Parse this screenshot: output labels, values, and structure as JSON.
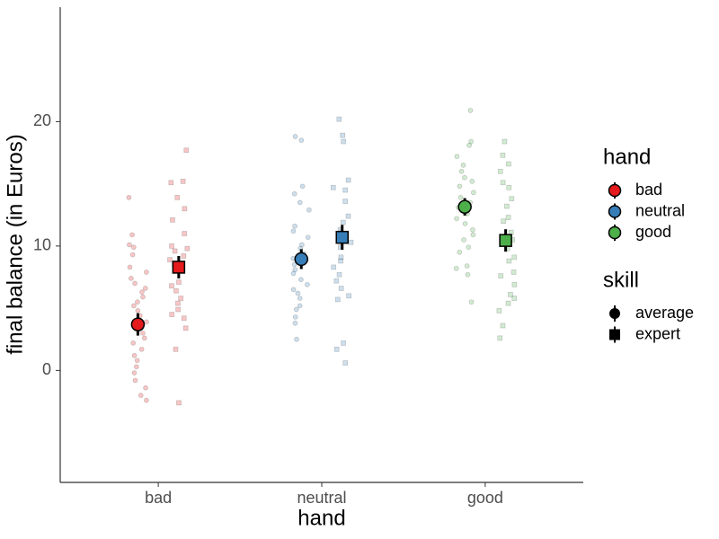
{
  "chart_data": {
    "type": "scatter",
    "x_label": "hand",
    "y_label": "final balance (in Euros)",
    "categories": [
      "bad",
      "neutral",
      "good"
    ],
    "ylim": [
      -9,
      29.2
    ],
    "yticks": [
      0,
      10,
      20
    ],
    "legend_title": "hand",
    "skill": {
      "title": "skill",
      "names": [
        "average",
        "expert"
      ]
    },
    "series": [
      {
        "name": "bad",
        "color": "#e41a1c",
        "average": {
          "mean": 3.7,
          "error": 0.9,
          "points": [
            13.9,
            10.9,
            10.1,
            9.9,
            9.3,
            8.3,
            7.9,
            7.4,
            7.0,
            6.6,
            6.3,
            5.9,
            5.5,
            5.2,
            4.8,
            4.4,
            3.9,
            3.4,
            3.0,
            2.6,
            2.2,
            1.7,
            1.2,
            0.8,
            0.3,
            -0.2,
            -0.8,
            -1.4,
            -2.0,
            -2.4
          ]
        },
        "expert": {
          "mean": 8.3,
          "error": 0.9,
          "points": [
            17.7,
            15.2,
            15.1,
            13.9,
            13.0,
            12.1,
            11.0,
            10.0,
            9.8,
            9.6,
            9.2,
            8.9,
            8.5,
            8.0,
            7.1,
            6.8,
            6.4,
            5.8,
            5.4,
            4.9,
            4.5,
            4.2,
            3.4,
            1.7,
            -2.6
          ]
        }
      },
      {
        "name": "neutral",
        "color": "#377eb8",
        "average": {
          "mean": 8.95,
          "error": 0.8,
          "points": [
            18.8,
            18.5,
            14.8,
            14.2,
            13.5,
            12.9,
            11.6,
            11.2,
            10.7,
            10.1,
            9.8,
            9.4,
            9.0,
            8.5,
            8.1,
            7.8,
            7.3,
            6.9,
            6.5,
            6.2,
            5.8,
            5.2,
            4.9,
            4.3,
            3.8,
            2.5
          ]
        },
        "expert": {
          "mean": 10.7,
          "error": 1.0,
          "points": [
            20.2,
            18.9,
            18.4,
            15.3,
            14.7,
            14.5,
            13.6,
            12.4,
            11.9,
            11.3,
            10.8,
            10.3,
            9.9,
            9.1,
            8.8,
            8.3,
            7.7,
            7.2,
            6.6,
            6.0,
            5.7,
            2.2,
            1.7,
            0.6
          ]
        }
      },
      {
        "name": "good",
        "color": "#4daf4a",
        "average": {
          "mean": 13.15,
          "error": 0.7,
          "points": [
            20.9,
            18.4,
            18.1,
            17.2,
            16.5,
            16.0,
            15.5,
            15.2,
            14.8,
            14.3,
            13.9,
            13.5,
            13.1,
            12.6,
            12.2,
            11.8,
            11.3,
            10.9,
            10.5,
            9.9,
            9.5,
            8.4,
            8.2,
            7.7,
            5.5
          ]
        },
        "expert": {
          "mean": 10.45,
          "error": 0.9,
          "points": [
            18.4,
            17.3,
            16.6,
            16.0,
            15.1,
            14.7,
            13.8,
            13.2,
            12.3,
            12.0,
            11.1,
            10.5,
            9.8,
            9.1,
            8.8,
            7.9,
            7.6,
            6.9,
            6.1,
            5.8,
            5.4,
            4.8,
            3.6,
            2.6
          ]
        }
      }
    ]
  }
}
